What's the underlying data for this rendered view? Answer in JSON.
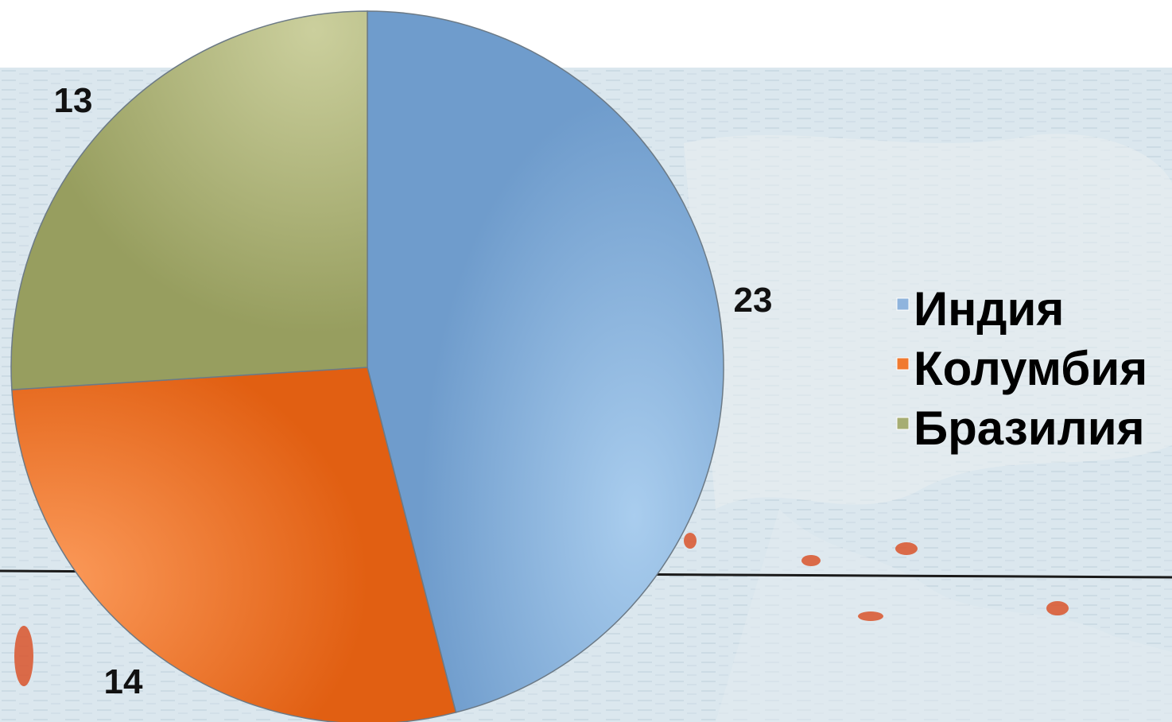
{
  "chart_data": {
    "type": "pie",
    "categories": [
      "Индия",
      "Колумбия",
      "Бразилия"
    ],
    "values": [
      23,
      14,
      13
    ],
    "colors": [
      "#8fb4dd",
      "#f07a30",
      "#a6ad73"
    ],
    "data_labels": [
      "23",
      "14",
      "13"
    ],
    "legend": {
      "placement": "right",
      "entries": [
        "Индия",
        "Колумбия",
        "Бразилия"
      ]
    }
  }
}
